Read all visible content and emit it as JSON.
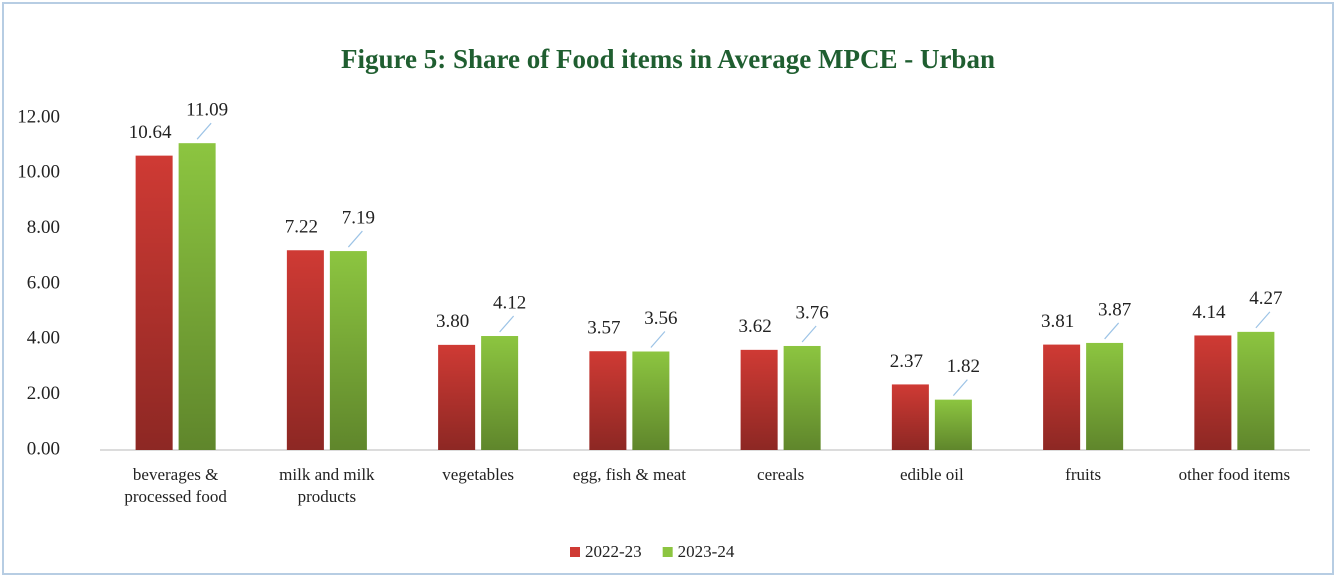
{
  "chart_data": {
    "type": "bar",
    "title": "Figure 5: Share of Food items in Average MPCE - Urban",
    "categories": [
      "beverages & processed food",
      "milk and milk products",
      "vegetables",
      "egg, fish & meat",
      "cereals",
      "edible oil",
      "fruits",
      "other food items"
    ],
    "series": [
      {
        "name": "2022-23",
        "color": "#cf3a34",
        "values": [
          10.64,
          7.22,
          3.8,
          3.57,
          3.62,
          2.37,
          3.81,
          4.14
        ],
        "value_labels": [
          "10.64",
          "7.22",
          "3.80",
          "3.57",
          "3.62",
          "2.37",
          "3.81",
          "4.14"
        ]
      },
      {
        "name": "2023-24",
        "color": "#8cc540",
        "values": [
          11.09,
          7.19,
          4.12,
          3.56,
          3.76,
          1.82,
          3.87,
          4.27
        ],
        "value_labels": [
          "11.09",
          "7.19",
          "4.12",
          "3.56",
          "3.76",
          "1.82",
          "3.87",
          "4.27"
        ]
      }
    ],
    "ylim": [
      0,
      12
    ],
    "yticks": [
      {
        "value": 0,
        "label": "0.00"
      },
      {
        "value": 2,
        "label": "2.00"
      },
      {
        "value": 4,
        "label": "4.00"
      },
      {
        "value": 6,
        "label": "6.00"
      },
      {
        "value": 8,
        "label": "8.00"
      },
      {
        "value": 10,
        "label": "10.00"
      },
      {
        "value": 12,
        "label": "12.00"
      }
    ],
    "grid": false,
    "legend": "bottom"
  }
}
